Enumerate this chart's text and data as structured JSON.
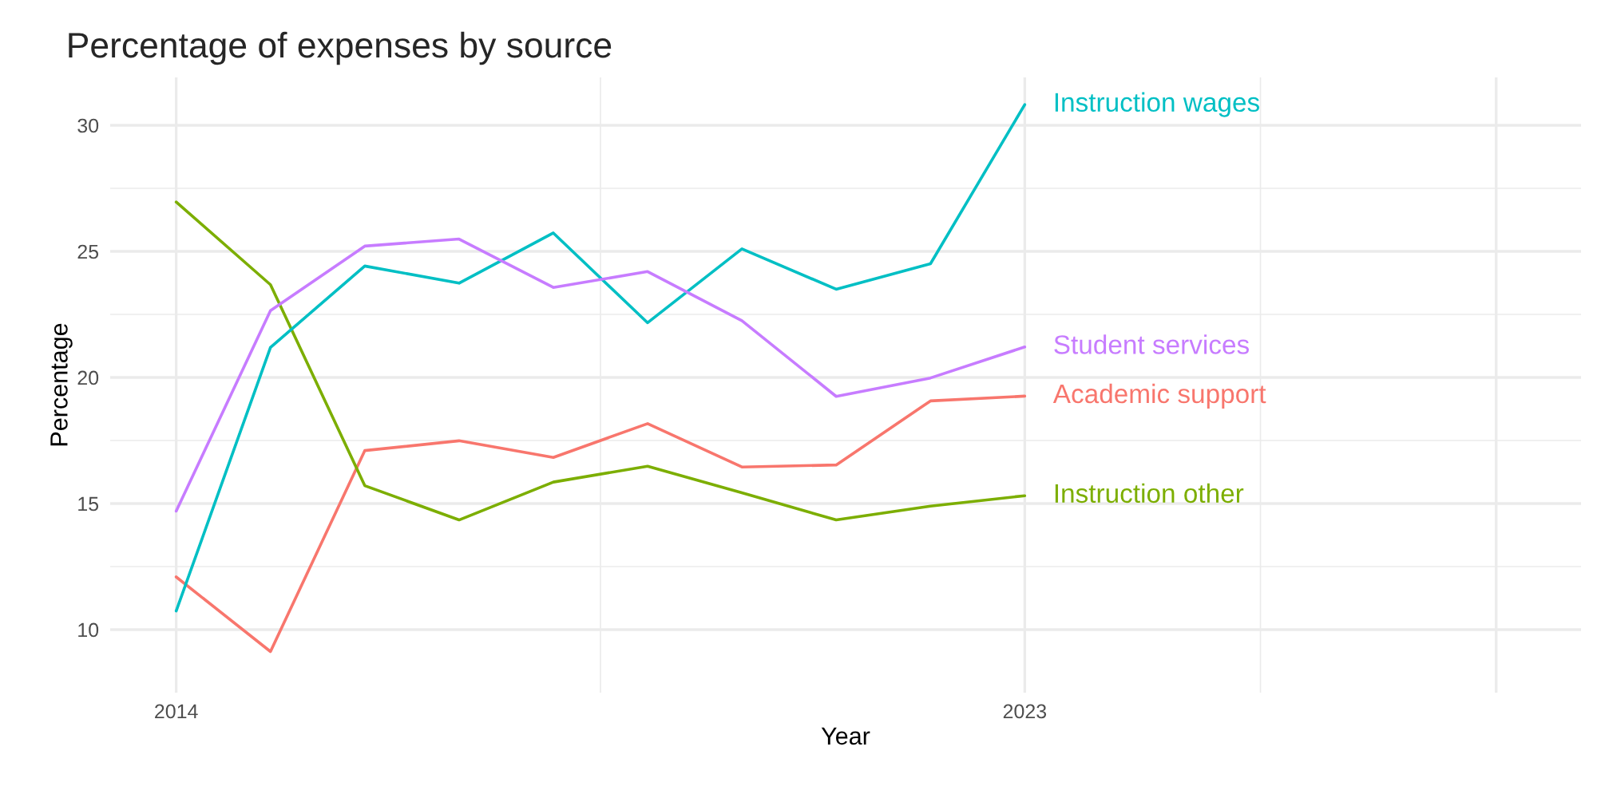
{
  "chart_data": {
    "type": "line",
    "title": "Percentage of expenses by source",
    "xlabel": "Year",
    "ylabel": "Percentage",
    "x": [
      2014,
      2015,
      2016,
      2017,
      2018,
      2019,
      2020,
      2021,
      2022,
      2023
    ],
    "series": [
      {
        "name": "Academic support",
        "color": "#f8766d",
        "values": [
          12.09,
          9.13,
          17.1,
          17.49,
          16.83,
          18.17,
          16.45,
          16.53,
          19.07,
          19.26
        ]
      },
      {
        "name": "Instruction other",
        "color": "#7cae00",
        "values": [
          26.96,
          23.68,
          15.71,
          14.35,
          15.85,
          16.48,
          15.43,
          14.35,
          14.9,
          15.31
        ]
      },
      {
        "name": "Instruction wages",
        "color": "#00bfc4",
        "values": [
          10.74,
          21.19,
          24.42,
          23.74,
          25.73,
          22.17,
          25.1,
          23.5,
          24.51,
          30.82
        ]
      },
      {
        "name": "Student services",
        "color": "#c77cff",
        "values": [
          14.7,
          22.65,
          25.21,
          25.49,
          23.57,
          24.2,
          22.25,
          19.25,
          19.98,
          21.21
        ]
      }
    ],
    "xlim": [
      2013.3,
      2028.9
    ],
    "xticks": [
      2014,
      2023,
      {
        "value": 2028,
        "label": null
      }
    ],
    "ylim": [
      7.5,
      31.9
    ],
    "yticks": [
      10,
      15,
      20,
      25,
      30
    ],
    "grid": true,
    "legend": false
  }
}
